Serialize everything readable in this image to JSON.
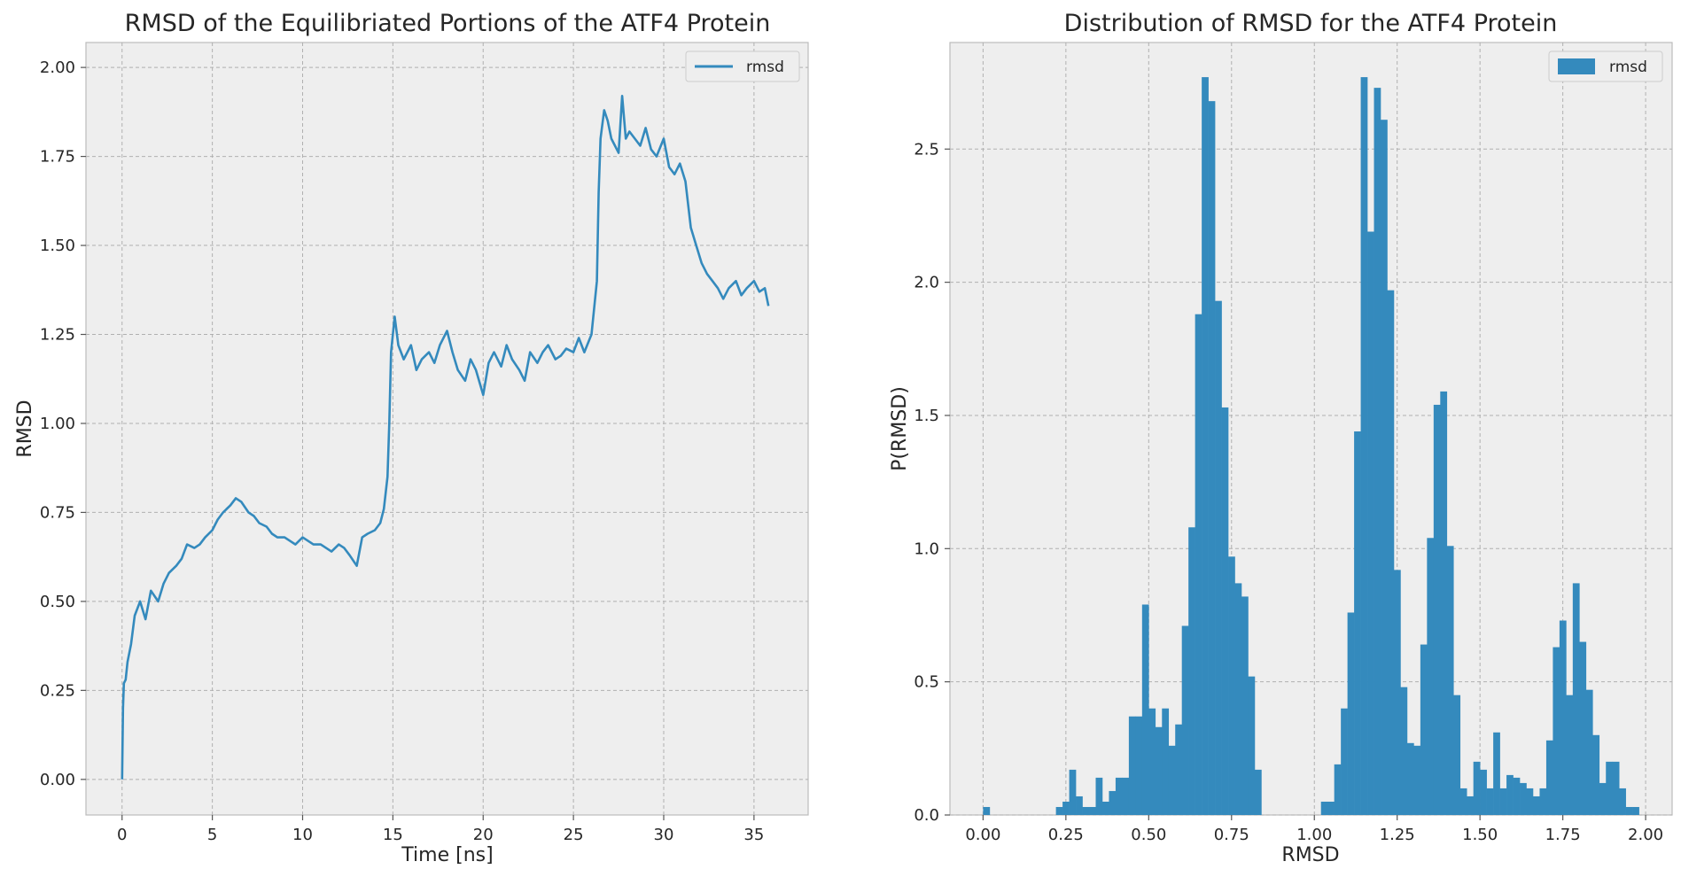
{
  "colors": {
    "series": "#348abd",
    "axes_bg": "#eeeeee",
    "grid": "#b0b0b0"
  },
  "chart_data": [
    {
      "type": "line",
      "title": "RMSD of the Equilibriated Portions of the ATF4 Protein",
      "xlabel": "Time [ns]",
      "ylabel": "RMSD",
      "xlim": [
        -2,
        38
      ],
      "ylim": [
        -0.1,
        2.07
      ],
      "xticks": [
        0,
        5,
        10,
        15,
        20,
        25,
        30,
        35
      ],
      "xtick_labels": [
        "0",
        "5",
        "10",
        "15",
        "20",
        "25",
        "30",
        "35"
      ],
      "yticks": [
        0.0,
        0.25,
        0.5,
        0.75,
        1.0,
        1.25,
        1.5,
        1.75,
        2.0
      ],
      "ytick_labels": [
        "0.00",
        "0.25",
        "0.50",
        "0.75",
        "1.00",
        "1.25",
        "1.50",
        "1.75",
        "2.00"
      ],
      "grid": true,
      "legend": {
        "placement": "top-right",
        "entries": [
          "rmsd"
        ]
      },
      "series": [
        {
          "name": "rmsd",
          "x": [
            0,
            0.05,
            0.1,
            0.2,
            0.3,
            0.5,
            0.7,
            1.0,
            1.3,
            1.6,
            2.0,
            2.3,
            2.6,
            3.0,
            3.3,
            3.6,
            4.0,
            4.3,
            4.6,
            5.0,
            5.3,
            5.6,
            6.0,
            6.3,
            6.6,
            7.0,
            7.3,
            7.6,
            8.0,
            8.3,
            8.6,
            9.0,
            9.3,
            9.6,
            10.0,
            10.3,
            10.6,
            11.0,
            11.3,
            11.6,
            12.0,
            12.3,
            12.6,
            13.0,
            13.3,
            13.6,
            14.0,
            14.3,
            14.5,
            14.7,
            14.8,
            14.9,
            15.1,
            15.3,
            15.6,
            16.0,
            16.3,
            16.6,
            17.0,
            17.3,
            17.6,
            18.0,
            18.3,
            18.6,
            19.0,
            19.3,
            19.6,
            20.0,
            20.3,
            20.6,
            21.0,
            21.3,
            21.6,
            22.0,
            22.3,
            22.6,
            23.0,
            23.3,
            23.6,
            24.0,
            24.3,
            24.6,
            25.0,
            25.3,
            25.6,
            26.0,
            26.3,
            26.4,
            26.5,
            26.7,
            26.9,
            27.1,
            27.3,
            27.5,
            27.7,
            27.9,
            28.1,
            28.4,
            28.7,
            29.0,
            29.3,
            29.6,
            30.0,
            30.3,
            30.6,
            30.9,
            31.2,
            31.5,
            31.8,
            32.1,
            32.4,
            32.7,
            33.0,
            33.3,
            33.6,
            34.0,
            34.3,
            34.6,
            35.0,
            35.3,
            35.6,
            35.8
          ],
          "y": [
            0.0,
            0.2,
            0.27,
            0.28,
            0.33,
            0.38,
            0.46,
            0.5,
            0.45,
            0.53,
            0.5,
            0.55,
            0.58,
            0.6,
            0.62,
            0.66,
            0.65,
            0.66,
            0.68,
            0.7,
            0.73,
            0.75,
            0.77,
            0.79,
            0.78,
            0.75,
            0.74,
            0.72,
            0.71,
            0.69,
            0.68,
            0.68,
            0.67,
            0.66,
            0.68,
            0.67,
            0.66,
            0.66,
            0.65,
            0.64,
            0.66,
            0.65,
            0.63,
            0.6,
            0.68,
            0.69,
            0.7,
            0.72,
            0.76,
            0.85,
            1.0,
            1.2,
            1.3,
            1.22,
            1.18,
            1.22,
            1.15,
            1.18,
            1.2,
            1.17,
            1.22,
            1.26,
            1.2,
            1.15,
            1.12,
            1.18,
            1.15,
            1.08,
            1.17,
            1.2,
            1.16,
            1.22,
            1.18,
            1.15,
            1.12,
            1.2,
            1.17,
            1.2,
            1.22,
            1.18,
            1.19,
            1.21,
            1.2,
            1.24,
            1.2,
            1.25,
            1.4,
            1.65,
            1.8,
            1.88,
            1.85,
            1.8,
            1.78,
            1.76,
            1.92,
            1.8,
            1.82,
            1.8,
            1.78,
            1.83,
            1.77,
            1.75,
            1.8,
            1.72,
            1.7,
            1.73,
            1.68,
            1.55,
            1.5,
            1.45,
            1.42,
            1.4,
            1.38,
            1.35,
            1.38,
            1.4,
            1.36,
            1.38,
            1.4,
            1.37,
            1.38,
            1.33
          ]
        }
      ]
    },
    {
      "type": "bar",
      "title": "Distribution of RMSD for the ATF4 Protein",
      "xlabel": "RMSD",
      "ylabel": "P(RMSD)",
      "xlim": [
        -0.1,
        2.08
      ],
      "ylim": [
        0,
        2.9
      ],
      "bin_width": 0.02,
      "xticks": [
        0.0,
        0.25,
        0.5,
        0.75,
        1.0,
        1.25,
        1.5,
        1.75,
        2.0
      ],
      "xtick_labels": [
        "0.00",
        "0.25",
        "0.50",
        "0.75",
        "1.00",
        "1.25",
        "1.50",
        "1.75",
        "2.00"
      ],
      "yticks": [
        0.0,
        0.5,
        1.0,
        1.5,
        2.0,
        2.5
      ],
      "ytick_labels": [
        "0.0",
        "0.5",
        "1.0",
        "1.5",
        "2.0",
        "2.5"
      ],
      "grid": true,
      "legend": {
        "placement": "top-right",
        "entries": [
          "rmsd"
        ]
      },
      "series": [
        {
          "name": "rmsd",
          "bin_left": [
            0.0,
            0.22,
            0.24,
            0.26,
            0.28,
            0.3,
            0.32,
            0.34,
            0.36,
            0.38,
            0.4,
            0.42,
            0.44,
            0.46,
            0.48,
            0.5,
            0.52,
            0.54,
            0.56,
            0.58,
            0.6,
            0.62,
            0.64,
            0.66,
            0.68,
            0.7,
            0.72,
            0.74,
            0.76,
            0.78,
            0.8,
            0.82,
            1.02,
            1.04,
            1.06,
            1.08,
            1.1,
            1.12,
            1.14,
            1.16,
            1.18,
            1.2,
            1.22,
            1.24,
            1.26,
            1.28,
            1.3,
            1.32,
            1.34,
            1.36,
            1.38,
            1.4,
            1.42,
            1.44,
            1.46,
            1.48,
            1.5,
            1.52,
            1.54,
            1.56,
            1.58,
            1.6,
            1.62,
            1.64,
            1.66,
            1.68,
            1.7,
            1.72,
            1.74,
            1.76,
            1.78,
            1.8,
            1.82,
            1.84,
            1.86,
            1.88,
            1.9,
            1.92,
            1.94,
            1.96
          ],
          "values": [
            0.03,
            0.03,
            0.05,
            0.17,
            0.07,
            0.03,
            0.03,
            0.14,
            0.05,
            0.09,
            0.14,
            0.14,
            0.37,
            0.37,
            0.79,
            0.4,
            0.33,
            0.4,
            0.26,
            0.34,
            0.71,
            1.08,
            1.88,
            2.77,
            2.68,
            1.93,
            1.53,
            0.97,
            0.87,
            0.82,
            0.52,
            0.17,
            0.05,
            0.05,
            0.19,
            0.4,
            0.76,
            1.44,
            2.77,
            2.19,
            2.73,
            2.61,
            1.97,
            0.92,
            0.48,
            0.27,
            0.26,
            0.64,
            1.04,
            1.54,
            1.59,
            1.01,
            0.45,
            0.1,
            0.07,
            0.2,
            0.17,
            0.1,
            0.31,
            0.1,
            0.15,
            0.14,
            0.12,
            0.1,
            0.07,
            0.1,
            0.28,
            0.63,
            0.73,
            0.45,
            0.87,
            0.65,
            0.47,
            0.3,
            0.12,
            0.2,
            0.2,
            0.1,
            0.03,
            0.03
          ]
        }
      ]
    }
  ]
}
